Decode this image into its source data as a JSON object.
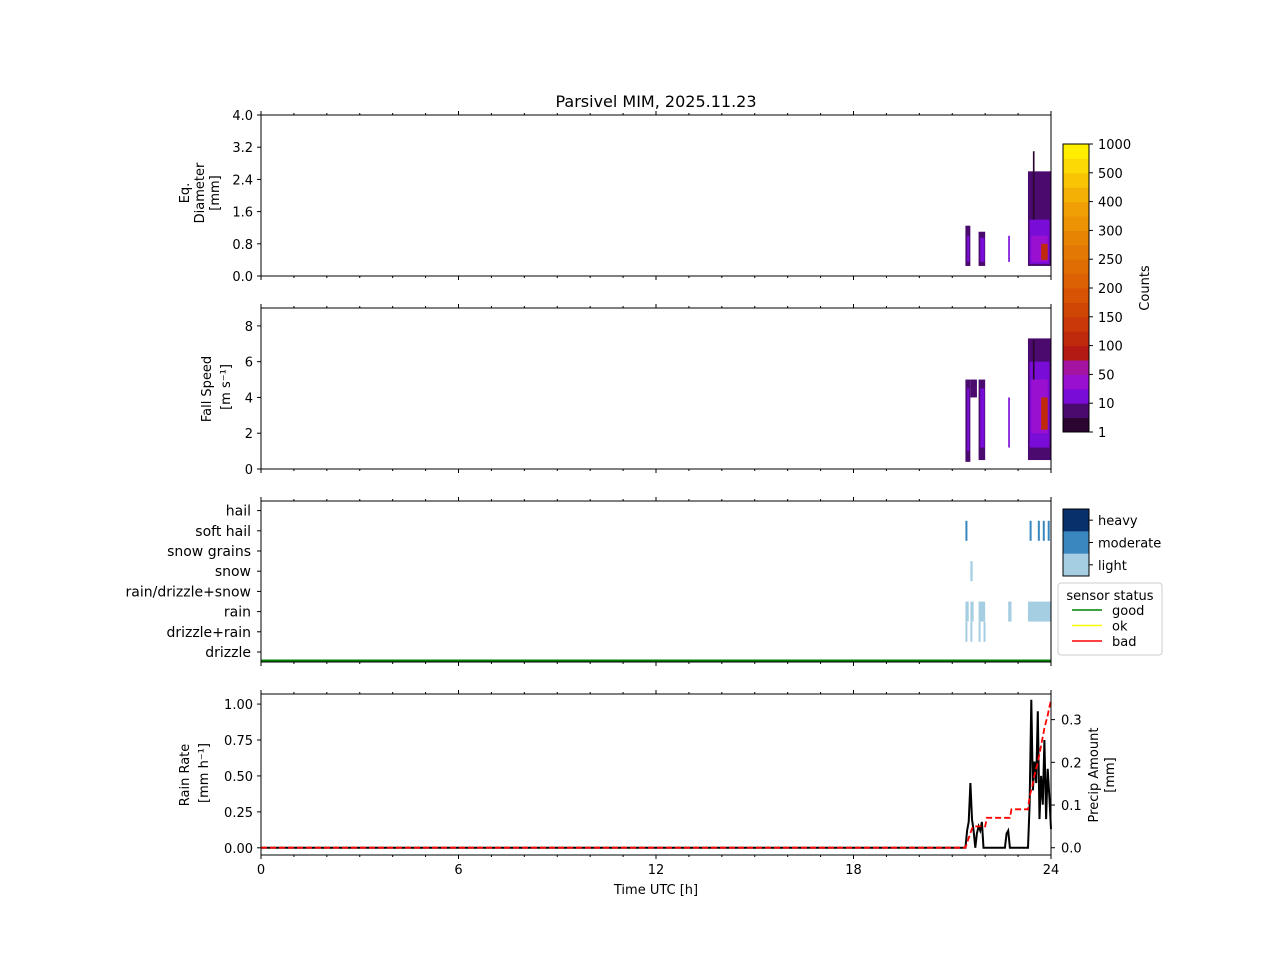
{
  "title": "Parsivel MIM, 2025.11.23",
  "chart_data": [
    {
      "type": "heatmap",
      "ylabel": [
        "Eq.",
        "Diameter",
        "[mm]"
      ],
      "x_range": [
        0,
        24
      ],
      "ylim": [
        0.0,
        4.0
      ],
      "yticks": [
        "0.0",
        "0.8",
        "1.6",
        "2.4",
        "3.2",
        "4.0"
      ],
      "ytick_values": [
        0.0,
        0.8,
        1.6,
        2.4,
        3.2,
        4.0
      ],
      "cells": [
        {
          "t0": 21.4,
          "t1": 21.55,
          "y0": 0.25,
          "y1": 1.25,
          "level": 1
        },
        {
          "t0": 21.45,
          "t1": 21.52,
          "y0": 0.35,
          "y1": 1.0,
          "level": 2
        },
        {
          "t0": 21.8,
          "t1": 22.0,
          "y0": 0.25,
          "y1": 1.1,
          "level": 1
        },
        {
          "t0": 21.85,
          "t1": 21.98,
          "y0": 0.35,
          "y1": 0.95,
          "level": 2
        },
        {
          "t0": 22.7,
          "t1": 22.75,
          "y0": 0.35,
          "y1": 1.0,
          "level": 2
        },
        {
          "t0": 23.3,
          "t1": 24.0,
          "y0": 0.25,
          "y1": 2.6,
          "level": 1
        },
        {
          "t0": 23.35,
          "t1": 23.95,
          "y0": 0.3,
          "y1": 1.4,
          "level": 2
        },
        {
          "t0": 23.4,
          "t1": 23.9,
          "y0": 0.35,
          "y1": 1.0,
          "level": 3
        },
        {
          "t0": 23.7,
          "t1": 23.9,
          "y0": 0.4,
          "y1": 0.8,
          "level": 6
        },
        {
          "t0": 23.45,
          "t1": 23.5,
          "y0": 1.4,
          "y1": 3.1,
          "level": 0
        }
      ]
    },
    {
      "type": "heatmap",
      "ylabel": [
        "Fall Speed",
        "[m s⁻¹]"
      ],
      "x_range": [
        0,
        24
      ],
      "ylim": [
        0,
        9
      ],
      "yticks": [
        "0",
        "2",
        "4",
        "6",
        "8"
      ],
      "ytick_values": [
        0,
        2,
        4,
        6,
        8
      ],
      "cells": [
        {
          "t0": 21.4,
          "t1": 21.55,
          "y0": 0.4,
          "y1": 5.0,
          "level": 1
        },
        {
          "t0": 21.45,
          "t1": 21.52,
          "y0": 1.0,
          "y1": 4.5,
          "level": 2
        },
        {
          "t0": 21.55,
          "t1": 21.75,
          "y0": 4.0,
          "y1": 5.0,
          "level": 1
        },
        {
          "t0": 21.8,
          "t1": 22.0,
          "y0": 0.5,
          "y1": 5.0,
          "level": 1
        },
        {
          "t0": 21.85,
          "t1": 21.98,
          "y0": 1.2,
          "y1": 4.5,
          "level": 2
        },
        {
          "t0": 22.7,
          "t1": 22.75,
          "y0": 1.2,
          "y1": 4.0,
          "level": 2
        },
        {
          "t0": 23.3,
          "t1": 24.0,
          "y0": 0.5,
          "y1": 7.3,
          "level": 1
        },
        {
          "t0": 23.35,
          "t1": 23.95,
          "y0": 1.2,
          "y1": 6.0,
          "level": 2
        },
        {
          "t0": 23.4,
          "t1": 23.9,
          "y0": 2.0,
          "y1": 5.0,
          "level": 3
        },
        {
          "t0": 23.7,
          "t1": 23.9,
          "y0": 2.2,
          "y1": 4.0,
          "level": 6
        },
        {
          "t0": 23.45,
          "t1": 23.5,
          "y0": 5.0,
          "y1": 7.2,
          "level": 0
        }
      ]
    },
    {
      "type": "bar",
      "categories": [
        "drizzle",
        "drizzle+rain",
        "rain",
        "rain/drizzle+snow",
        "snow",
        "snow grains",
        "soft hail",
        "hail"
      ],
      "x_range": [
        0,
        24
      ],
      "events": [
        {
          "t0": 21.4,
          "t1": 21.45,
          "cat": 1,
          "intensity": "light"
        },
        {
          "t0": 21.55,
          "t1": 21.6,
          "cat": 1,
          "intensity": "light"
        },
        {
          "t0": 21.8,
          "t1": 21.85,
          "cat": 1,
          "intensity": "light"
        },
        {
          "t0": 21.95,
          "t1": 22.0,
          "cat": 1,
          "intensity": "light"
        },
        {
          "t0": 21.4,
          "t1": 21.5,
          "cat": 2,
          "intensity": "light"
        },
        {
          "t0": 21.55,
          "t1": 21.65,
          "cat": 2,
          "intensity": "light"
        },
        {
          "t0": 21.8,
          "t1": 22.0,
          "cat": 2,
          "intensity": "light"
        },
        {
          "t0": 22.7,
          "t1": 22.8,
          "cat": 2,
          "intensity": "light"
        },
        {
          "t0": 23.3,
          "t1": 24.0,
          "cat": 2,
          "intensity": "light"
        },
        {
          "t0": 21.55,
          "t1": 21.62,
          "cat": 4,
          "intensity": "light"
        },
        {
          "t0": 21.4,
          "t1": 21.45,
          "cat": 6,
          "intensity": "moderate"
        },
        {
          "t0": 23.35,
          "t1": 23.4,
          "cat": 6,
          "intensity": "moderate"
        },
        {
          "t0": 23.6,
          "t1": 23.65,
          "cat": 6,
          "intensity": "moderate"
        },
        {
          "t0": 23.75,
          "t1": 23.8,
          "cat": 6,
          "intensity": "moderate"
        },
        {
          "t0": 23.9,
          "t1": 23.95,
          "cat": 6,
          "intensity": "moderate"
        }
      ],
      "intensity_legend": [
        "heavy",
        "moderate",
        "light"
      ],
      "intensity_colors": {
        "light": "#a6cee3",
        "moderate": "#3a87c0",
        "heavy": "#08306b"
      },
      "status_legend_title": "sensor status",
      "status_legend": [
        {
          "label": "good",
          "color": "#008000"
        },
        {
          "label": "ok",
          "color": "#ffff00"
        },
        {
          "label": "bad",
          "color": "#ff0000"
        }
      ],
      "status_series": [
        {
          "t0": 0,
          "t1": 24,
          "status": "good"
        }
      ]
    },
    {
      "type": "line",
      "xlabel": "Time UTC [h]",
      "xticks": [
        "0",
        "6",
        "12",
        "18",
        "24"
      ],
      "xtick_values": [
        0,
        6,
        12,
        18,
        24
      ],
      "xlim": [
        0,
        24
      ],
      "ylabel": [
        "Rain Rate",
        "[mm h⁻¹]"
      ],
      "ylim": [
        -0.05,
        1.07
      ],
      "yticks": [
        "0.00",
        "0.25",
        "0.50",
        "0.75",
        "1.00"
      ],
      "ytick_values": [
        0.0,
        0.25,
        0.5,
        0.75,
        1.0
      ],
      "y2label": [
        "Precip Amount",
        "[mm]"
      ],
      "y2lim": [
        -0.017,
        0.36
      ],
      "y2ticks": [
        "0.0",
        "0.1",
        "0.2",
        "0.3"
      ],
      "y2tick_values": [
        0.0,
        0.1,
        0.2,
        0.3
      ],
      "series": [
        {
          "axis": "left",
          "color": "#000000",
          "style": "solid",
          "x": [
            0,
            21.4,
            21.45,
            21.5,
            21.55,
            21.6,
            21.65,
            21.7,
            21.75,
            21.8,
            21.85,
            21.9,
            21.95,
            22.0,
            22.05,
            22.3,
            22.6,
            22.65,
            22.7,
            22.75,
            22.8,
            23.0,
            23.2,
            23.3,
            23.35,
            23.4,
            23.45,
            23.5,
            23.55,
            23.6,
            23.65,
            23.7,
            23.75,
            23.8,
            23.85,
            23.9,
            23.95,
            24.0
          ],
          "y": [
            0,
            0,
            0.12,
            0.18,
            0.45,
            0.2,
            0.12,
            0.0,
            0.1,
            0.15,
            0.12,
            0.18,
            0.0,
            0.0,
            0.0,
            0.0,
            0.0,
            0.1,
            0.12,
            0.0,
            0.0,
            0.0,
            0.0,
            0.0,
            0.3,
            1.03,
            0.4,
            0.6,
            0.45,
            0.95,
            0.2,
            0.5,
            0.3,
            0.75,
            0.2,
            0.55,
            0.35,
            0.13
          ]
        },
        {
          "axis": "right",
          "color": "#ff0000",
          "style": "dashed",
          "x": [
            0,
            21.4,
            21.6,
            21.65,
            22.0,
            22.05,
            22.75,
            22.8,
            23.3,
            23.35,
            23.45,
            23.5,
            23.6,
            23.65,
            23.75,
            23.8,
            23.9,
            23.95,
            24.0
          ],
          "y": [
            0,
            0,
            0.045,
            0.05,
            0.05,
            0.07,
            0.07,
            0.09,
            0.09,
            0.12,
            0.15,
            0.17,
            0.2,
            0.22,
            0.26,
            0.28,
            0.31,
            0.33,
            0.345
          ]
        }
      ]
    }
  ],
  "colorbar": {
    "label": "Counts",
    "ticks": [
      "1",
      "10",
      "50",
      "100",
      "150",
      "200",
      "250",
      "300",
      "400",
      "500",
      "1000"
    ],
    "colors": [
      "#2b0530",
      "#4a0a6e",
      "#7a0cd8",
      "#9a10d0",
      "#a414a0",
      "#b41a14",
      "#c02a0c",
      "#c83808",
      "#d04604",
      "#d85404",
      "#dc6004",
      "#e06c04",
      "#e47804",
      "#e88404",
      "#ec9204",
      "#f0a004",
      "#f4b004",
      "#f8c404",
      "#fcd804",
      "#ffee00"
    ]
  }
}
